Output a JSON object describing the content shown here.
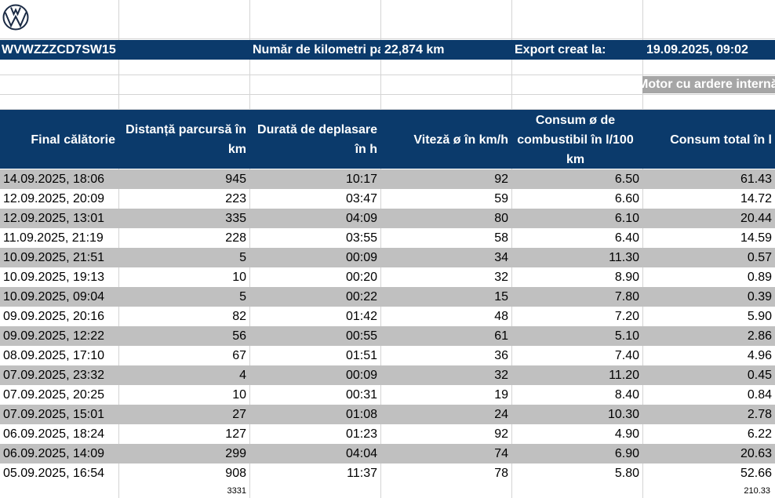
{
  "brand": {
    "logo_icon": "volkswagen-logo-icon"
  },
  "header": {
    "vin": "WVWZZZCD7SW15",
    "mileage_label": "Număr de kilometri parcurși",
    "mileage_value": "22,874 km",
    "export_label": "Export creat la:",
    "export_value": "19.09.2025, 09:02",
    "engine_type": "Motor cu ardere internă"
  },
  "columns": [
    "Final călătorie",
    "Distanță parcursă în km",
    "Durată de deplasare în h",
    "Viteză ø în km/h",
    "Consum ø de combustibil în l/100 km",
    "Consum total în l"
  ],
  "trips": [
    [
      "14.09.2025, 18:06",
      "945",
      "10:17",
      "92",
      "6.50",
      "61.43"
    ],
    [
      "12.09.2025, 20:09",
      "223",
      "03:47",
      "59",
      "6.60",
      "14.72"
    ],
    [
      "12.09.2025, 13:01",
      "335",
      "04:09",
      "80",
      "6.10",
      "20.44"
    ],
    [
      "11.09.2025, 21:19",
      "228",
      "03:55",
      "58",
      "6.40",
      "14.59"
    ],
    [
      "10.09.2025, 21:51",
      "5",
      "00:09",
      "34",
      "11.30",
      "0.57"
    ],
    [
      "10.09.2025, 19:13",
      "10",
      "00:20",
      "32",
      "8.90",
      "0.89"
    ],
    [
      "10.09.2025, 09:04",
      "5",
      "00:22",
      "15",
      "7.80",
      "0.39"
    ],
    [
      "09.09.2025, 20:16",
      "82",
      "01:42",
      "48",
      "7.20",
      "5.90"
    ],
    [
      "09.09.2025, 12:22",
      "56",
      "00:55",
      "61",
      "5.10",
      "2.86"
    ],
    [
      "08.09.2025, 17:10",
      "67",
      "01:51",
      "36",
      "7.40",
      "4.96"
    ],
    [
      "07.09.2025, 23:32",
      "4",
      "00:09",
      "32",
      "11.20",
      "0.45"
    ],
    [
      "07.09.2025, 20:25",
      "10",
      "00:31",
      "19",
      "8.40",
      "0.84"
    ],
    [
      "07.09.2025, 15:01",
      "27",
      "01:08",
      "24",
      "10.30",
      "2.78"
    ],
    [
      "06.09.2025, 18:24",
      "127",
      "01:23",
      "92",
      "4.90",
      "6.22"
    ],
    [
      "06.09.2025, 14:09",
      "299",
      "04:04",
      "74",
      "6.90",
      "20.63"
    ],
    [
      "05.09.2025, 16:54",
      "908",
      "11:37",
      "78",
      "5.80",
      "52.66"
    ]
  ],
  "totals": {
    "distance": "3331",
    "fuel": "210.33"
  }
}
